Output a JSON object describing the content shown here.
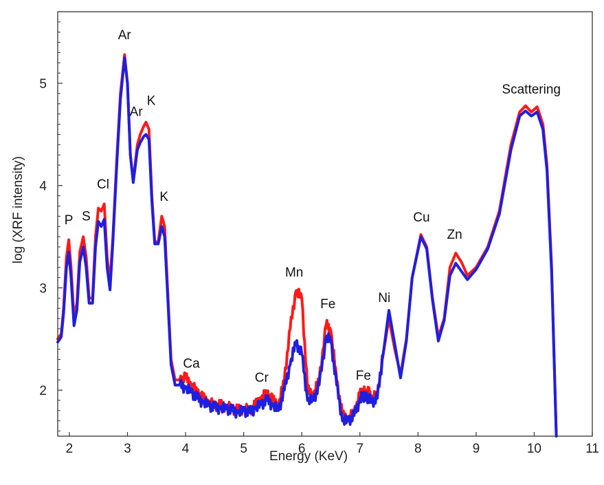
{
  "chart_data": {
    "type": "line",
    "xlabel": "Energy (KeV)",
    "ylabel": "log (XRF intensity)",
    "xlim": [
      1.8,
      11
    ],
    "ylim": [
      1.55,
      5.7
    ],
    "xticks": [
      "2",
      "3",
      "4",
      "5",
      "6",
      "7",
      "8",
      "9",
      "10",
      "11"
    ],
    "yticks": [
      "2",
      "3",
      "4",
      "5"
    ],
    "grid": false,
    "legend": "none",
    "colors": {
      "red_series": "#ff1a1a",
      "blue_series": "#1f1fe0"
    },
    "series": [
      {
        "color": "#ff1a1a",
        "x": [
          1.8,
          1.86,
          1.9,
          1.95,
          1.99,
          2.03,
          2.08,
          2.13,
          2.18,
          2.24,
          2.29,
          2.34,
          2.4,
          2.45,
          2.5,
          2.55,
          2.6,
          2.65,
          2.7,
          2.75,
          2.82,
          2.88,
          2.95,
          3.0,
          3.05,
          3.1,
          3.17,
          3.22,
          3.28,
          3.32,
          3.37,
          3.42,
          3.47,
          3.53,
          3.59,
          3.64,
          3.69,
          3.75,
          3.82,
          3.9,
          4.0,
          4.1,
          4.2,
          4.3,
          4.4,
          4.5,
          4.6,
          4.7,
          4.8,
          4.9,
          5.0,
          5.1,
          5.2,
          5.3,
          5.4,
          5.5,
          5.6,
          5.7,
          5.8,
          5.9,
          6.0,
          6.1,
          6.2,
          6.3,
          6.42,
          6.5,
          6.6,
          6.7,
          6.8,
          6.9,
          7.0,
          7.05,
          7.1,
          7.15,
          7.2,
          7.3,
          7.4,
          7.5,
          7.6,
          7.7,
          7.8,
          7.9,
          8.05,
          8.15,
          8.25,
          8.35,
          8.45,
          8.55,
          8.65,
          8.75,
          8.85,
          9.0,
          9.2,
          9.4,
          9.6,
          9.75,
          9.85,
          9.95,
          10.05,
          10.15,
          10.22,
          10.3,
          10.38
        ],
        "y": [
          2.5,
          2.55,
          2.8,
          3.3,
          3.47,
          3.2,
          2.7,
          2.85,
          3.35,
          3.5,
          3.3,
          2.9,
          2.9,
          3.5,
          3.78,
          3.75,
          3.82,
          3.3,
          3.05,
          3.5,
          4.3,
          4.9,
          5.28,
          5.0,
          4.3,
          4.05,
          4.4,
          4.5,
          4.58,
          4.62,
          4.55,
          3.9,
          3.45,
          3.45,
          3.7,
          3.6,
          3.0,
          2.3,
          2.1,
          2.1,
          2.12,
          2.05,
          1.98,
          1.92,
          1.88,
          1.85,
          1.85,
          1.84,
          1.82,
          1.8,
          1.82,
          1.8,
          1.85,
          1.92,
          1.97,
          1.9,
          1.85,
          2.1,
          2.6,
          2.97,
          2.9,
          2.0,
          1.95,
          2.1,
          2.64,
          2.58,
          2.1,
          1.75,
          1.72,
          1.78,
          1.95,
          2.0,
          1.96,
          1.98,
          1.92,
          1.95,
          2.35,
          2.7,
          2.4,
          2.15,
          2.5,
          3.1,
          3.52,
          3.4,
          2.9,
          2.52,
          2.7,
          3.2,
          3.34,
          3.25,
          3.12,
          3.2,
          3.4,
          3.75,
          4.4,
          4.72,
          4.78,
          4.72,
          4.77,
          4.6,
          4.2,
          3.2,
          1.55
        ]
      },
      {
        "color": "#1f1fe0",
        "x": [
          1.8,
          1.86,
          1.9,
          1.95,
          1.99,
          2.03,
          2.08,
          2.13,
          2.18,
          2.24,
          2.29,
          2.34,
          2.4,
          2.45,
          2.5,
          2.55,
          2.6,
          2.65,
          2.7,
          2.75,
          2.82,
          2.88,
          2.95,
          3.0,
          3.05,
          3.1,
          3.17,
          3.22,
          3.28,
          3.32,
          3.37,
          3.42,
          3.47,
          3.53,
          3.59,
          3.64,
          3.69,
          3.75,
          3.82,
          3.9,
          4.0,
          4.1,
          4.2,
          4.3,
          4.4,
          4.5,
          4.6,
          4.7,
          4.8,
          4.9,
          5.0,
          5.1,
          5.2,
          5.3,
          5.4,
          5.5,
          5.6,
          5.7,
          5.8,
          5.9,
          6.0,
          6.1,
          6.2,
          6.3,
          6.42,
          6.5,
          6.6,
          6.7,
          6.8,
          6.9,
          7.0,
          7.05,
          7.1,
          7.15,
          7.2,
          7.3,
          7.4,
          7.5,
          7.6,
          7.7,
          7.8,
          7.9,
          8.05,
          8.15,
          8.25,
          8.35,
          8.45,
          8.55,
          8.65,
          8.75,
          8.85,
          9.0,
          9.2,
          9.4,
          9.6,
          9.75,
          9.85,
          9.95,
          10.05,
          10.15,
          10.22,
          10.3,
          10.38
        ],
        "y": [
          2.47,
          2.52,
          2.75,
          3.2,
          3.35,
          3.1,
          2.63,
          2.78,
          3.25,
          3.4,
          3.2,
          2.85,
          2.85,
          3.4,
          3.65,
          3.6,
          3.67,
          3.2,
          2.98,
          3.45,
          4.25,
          4.85,
          5.25,
          5.0,
          4.3,
          4.03,
          4.35,
          4.42,
          4.48,
          4.5,
          4.45,
          3.85,
          3.43,
          3.43,
          3.6,
          3.5,
          2.95,
          2.25,
          2.05,
          2.05,
          2.02,
          1.98,
          1.92,
          1.88,
          1.85,
          1.83,
          1.82,
          1.82,
          1.8,
          1.78,
          1.8,
          1.78,
          1.82,
          1.86,
          1.9,
          1.85,
          1.8,
          2.0,
          2.25,
          2.47,
          2.35,
          1.9,
          1.9,
          2.05,
          2.52,
          2.48,
          2.05,
          1.7,
          1.7,
          1.75,
          1.9,
          1.95,
          1.92,
          1.93,
          1.88,
          1.92,
          2.35,
          2.78,
          2.45,
          2.12,
          2.48,
          3.1,
          3.5,
          3.38,
          2.88,
          2.48,
          2.68,
          3.12,
          3.24,
          3.16,
          3.08,
          3.18,
          3.38,
          3.72,
          4.35,
          4.68,
          4.73,
          4.68,
          4.72,
          4.55,
          4.15,
          3.15,
          1.55
        ]
      }
    ],
    "annotations": [
      {
        "text": "P",
        "x": 1.99,
        "y": 3.62
      },
      {
        "text": "S",
        "x": 2.29,
        "y": 3.66
      },
      {
        "text": "Cl",
        "x": 2.58,
        "y": 3.97
      },
      {
        "text": "Ar",
        "x": 2.95,
        "y": 5.43
      },
      {
        "text": "Ar",
        "x": 3.15,
        "y": 4.68
      },
      {
        "text": "K",
        "x": 3.41,
        "y": 4.79
      },
      {
        "text": "K",
        "x": 3.63,
        "y": 3.85
      },
      {
        "text": "Ca",
        "x": 4.1,
        "y": 2.22
      },
      {
        "text": "Cr",
        "x": 5.31,
        "y": 2.08
      },
      {
        "text": "Mn",
        "x": 5.87,
        "y": 3.11
      },
      {
        "text": "Fe",
        "x": 6.45,
        "y": 2.8
      },
      {
        "text": "Fe",
        "x": 7.06,
        "y": 2.1
      },
      {
        "text": "Ni",
        "x": 7.42,
        "y": 2.86
      },
      {
        "text": "Cu",
        "x": 8.06,
        "y": 3.65
      },
      {
        "text": "Zn",
        "x": 8.63,
        "y": 3.48
      },
      {
        "text": "Scattering",
        "x": 9.95,
        "y": 4.9
      }
    ]
  }
}
